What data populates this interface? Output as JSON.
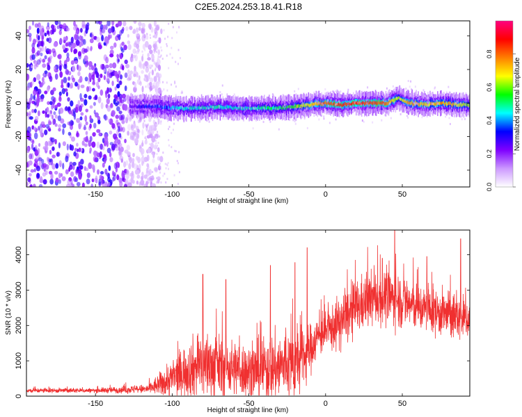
{
  "title": "C2E5.2024.253.18.41.R18",
  "chart_data": [
    {
      "type": "heatmap",
      "xlabel": "Height of straight line (km)",
      "ylabel": "Frequency (Hz)",
      "xlim": [
        -195,
        94
      ],
      "ylim": [
        -50,
        49
      ],
      "xticks": [
        -150,
        -100,
        -50,
        0,
        50
      ],
      "yticks": [
        -40,
        -20,
        0,
        20,
        40
      ],
      "colorbar": {
        "label": "Normalized spectral amplitude",
        "range": [
          0.0,
          1.0
        ],
        "ticks": [
          0.0,
          0.2,
          0.4,
          0.6,
          0.8
        ],
        "colors": [
          "#ffffff",
          "#cc99ff",
          "#7f00ff",
          "#0000ff",
          "#00ffff",
          "#00ff00",
          "#ffff00",
          "#ff7f00",
          "#ff0000",
          "#ff0080"
        ]
      },
      "noise_region_x": [
        -195,
        -115
      ],
      "ridge_points": {
        "x": [
          -125,
          -110,
          -100,
          -90,
          -80,
          -70,
          -60,
          -50,
          -40,
          -30,
          -20,
          -10,
          0,
          10,
          20,
          30,
          40,
          47,
          55,
          65,
          75,
          85,
          94
        ],
        "freq": [
          -2,
          -2,
          -3,
          -3,
          -3,
          -2,
          -3,
          -3,
          -3,
          -3,
          -2,
          -1,
          0,
          -1,
          0,
          0,
          0,
          3,
          0,
          -1,
          0,
          -1,
          -1
        ],
        "amplitude": [
          0.25,
          0.35,
          0.4,
          0.45,
          0.45,
          0.45,
          0.45,
          0.45,
          0.5,
          0.5,
          0.6,
          0.7,
          0.8,
          0.85,
          0.85,
          0.85,
          0.8,
          0.6,
          0.75,
          0.7,
          0.75,
          0.7,
          0.6
        ]
      }
    },
    {
      "type": "line",
      "xlabel": "Height of straight line (km)",
      "ylabel": "SNR (10 * v/v)",
      "xlim": [
        -195,
        94
      ],
      "ylim": [
        0,
        4700
      ],
      "xticks": [
        -150,
        -100,
        -50,
        0,
        50
      ],
      "yticks": [
        0,
        1000,
        2000,
        3000,
        4000
      ],
      "color": "#f03030",
      "envelope": {
        "x": [
          -195,
          -150,
          -116,
          -110,
          -100,
          -90,
          -80,
          -70,
          -60,
          -50,
          -40,
          -30,
          -20,
          -12,
          -5,
          0,
          10,
          20,
          30,
          40,
          50,
          60,
          70,
          80,
          90,
          94
        ],
        "mean": [
          160,
          160,
          200,
          300,
          500,
          750,
          900,
          850,
          800,
          700,
          750,
          850,
          900,
          1200,
          1700,
          1800,
          2100,
          2500,
          2750,
          2800,
          2700,
          2500,
          2400,
          2300,
          2200,
          2200
        ],
        "spread": [
          60,
          60,
          120,
          250,
          500,
          700,
          900,
          800,
          700,
          700,
          800,
          900,
          900,
          700,
          500,
          500,
          700,
          700,
          700,
          700,
          700,
          600,
          600,
          600,
          600,
          500
        ]
      },
      "peaks": [
        {
          "x": -80,
          "y": 3450
        },
        {
          "x": -65,
          "y": 3300
        },
        {
          "x": -36,
          "y": 3700
        },
        {
          "x": -20,
          "y": 3780
        },
        {
          "x": -12,
          "y": 4200
        },
        {
          "x": 45,
          "y": 4700
        },
        {
          "x": 37,
          "y": 3900
        },
        {
          "x": 88,
          "y": 4450
        },
        {
          "x": 66,
          "y": 3950
        }
      ]
    }
  ]
}
